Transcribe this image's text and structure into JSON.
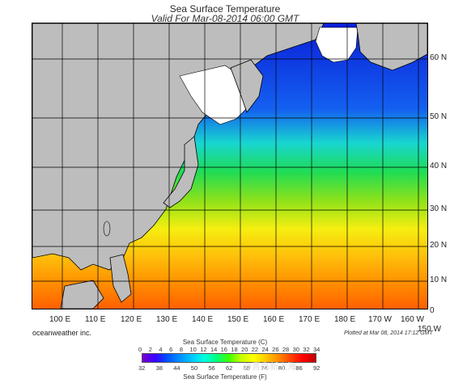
{
  "header": {
    "title": "Sea Surface Temperature",
    "subtitle": "Valid For Mar-08-2014 06:00 GMT"
  },
  "map": {
    "lon_labels": [
      "100 E",
      "110 E",
      "120 E",
      "130 E",
      "140 E",
      "150 E",
      "160 E",
      "170 E",
      "180 E",
      "170 W",
      "160 W",
      "150 W"
    ],
    "lat_labels": [
      "60 N",
      "50 N",
      "40 N",
      "30 N",
      "20 N",
      "10 N",
      "0"
    ],
    "colors": {
      "land": "#bdbdbd",
      "ice": "#ffffff",
      "grid": "#000000",
      "coast": "#000000"
    }
  },
  "footer": {
    "credit": "oceanweather inc.",
    "plotted": "Plotted at Mar 08, 2014 17:12 GMT",
    "watermark": "@青岛新上海"
  },
  "colorbar": {
    "title_c": "Sea Surface Temperature (C)",
    "title_f": "Sea Surface Temperature (F)",
    "celsius": [
      "0",
      "2",
      "4",
      "6",
      "8",
      "10",
      "12",
      "14",
      "16",
      "18",
      "20",
      "22",
      "24",
      "26",
      "28",
      "30",
      "32",
      "34"
    ],
    "fahrenheit": [
      "32",
      "38",
      "44",
      "50",
      "56",
      "62",
      "68",
      "74",
      "80",
      "86",
      "92"
    ],
    "stops": [
      "#7a00cc",
      "#3a00ff",
      "#0050ff",
      "#0090ff",
      "#00c8ff",
      "#00ffe0",
      "#00ff80",
      "#40ff00",
      "#c8ff00",
      "#ffff00",
      "#ffc800",
      "#ff8c00",
      "#ff4000",
      "#ff0000",
      "#c00000"
    ]
  }
}
